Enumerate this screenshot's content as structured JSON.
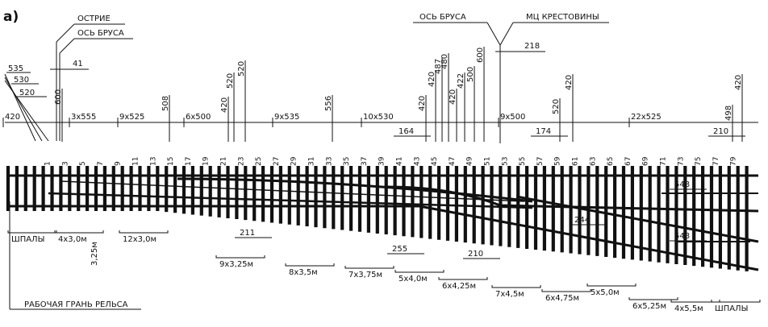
{
  "figure_label": "а)",
  "top_callouts": {
    "ostrie": "ОСТРИЕ",
    "os_brusa_left": "ОСЬ БРУСА",
    "os_brusa_right": "ОСЬ БРУСА",
    "mc_krestoviny": "МЦ КРЕСТОВИНЫ",
    "dim_41": "41",
    "dim_218": "218"
  },
  "left_stagger_dims": [
    "535",
    "530",
    "520"
  ],
  "spacing_labels": [
    {
      "text": "420"
    },
    {
      "text": "3х555"
    },
    {
      "text": "9х525"
    },
    {
      "text": "6х500"
    },
    {
      "text": "9х535"
    },
    {
      "text": "10х530"
    },
    {
      "text": "9х500"
    },
    {
      "text": "22х525"
    }
  ],
  "vertical_dims": [
    {
      "text": "600"
    },
    {
      "text": "508"
    },
    {
      "text": "420"
    },
    {
      "text": "520"
    },
    {
      "text": "520"
    },
    {
      "text": "556"
    },
    {
      "text": "420"
    },
    {
      "text": "420"
    },
    {
      "text": "487"
    },
    {
      "text": "480"
    },
    {
      "text": "420"
    },
    {
      "text": "422"
    },
    {
      "text": "500"
    },
    {
      "text": "600"
    },
    {
      "text": "520"
    },
    {
      "text": "420"
    },
    {
      "text": "498"
    },
    {
      "text": "420"
    }
  ],
  "small_dims": [
    {
      "text": "164"
    },
    {
      "text": "174"
    },
    {
      "text": "210"
    },
    {
      "text": "211"
    },
    {
      "text": "255"
    },
    {
      "text": "210"
    },
    {
      "text": "244"
    },
    {
      "text": "548"
    },
    {
      "text": "548"
    }
  ],
  "tie_numbers": [
    "1",
    "3",
    "5",
    "7",
    "9",
    "11",
    "13",
    "15",
    "17",
    "19",
    "21",
    "23",
    "25",
    "27",
    "29",
    "31",
    "33",
    "35",
    "37",
    "39",
    "41",
    "43",
    "45",
    "47",
    "49",
    "51",
    "53",
    "55",
    "57",
    "59",
    "61",
    "63",
    "65",
    "67",
    "69",
    "71",
    "73",
    "75",
    "77",
    "79"
  ],
  "bottom_groups": [
    {
      "text": "ШПАЛЫ"
    },
    {
      "text": "4х3,0м"
    },
    {
      "text": "3,25м"
    },
    {
      "text": "12х3,0м"
    },
    {
      "text": "9х3,25м"
    },
    {
      "text": "8х3,5м"
    },
    {
      "text": "7х3,75м"
    },
    {
      "text": "5х4,0м"
    },
    {
      "text": "6х4,25м"
    },
    {
      "text": "7х4,5м"
    },
    {
      "text": "6х4,75м"
    },
    {
      "text": "5х5,0м"
    },
    {
      "text": "6х5,25м"
    },
    {
      "text": "4х5,5м"
    },
    {
      "text": "ШПАЛЫ"
    }
  ],
  "rail_face_label": "РАБОЧАЯ ГРАНЬ РЕЛЬСА"
}
